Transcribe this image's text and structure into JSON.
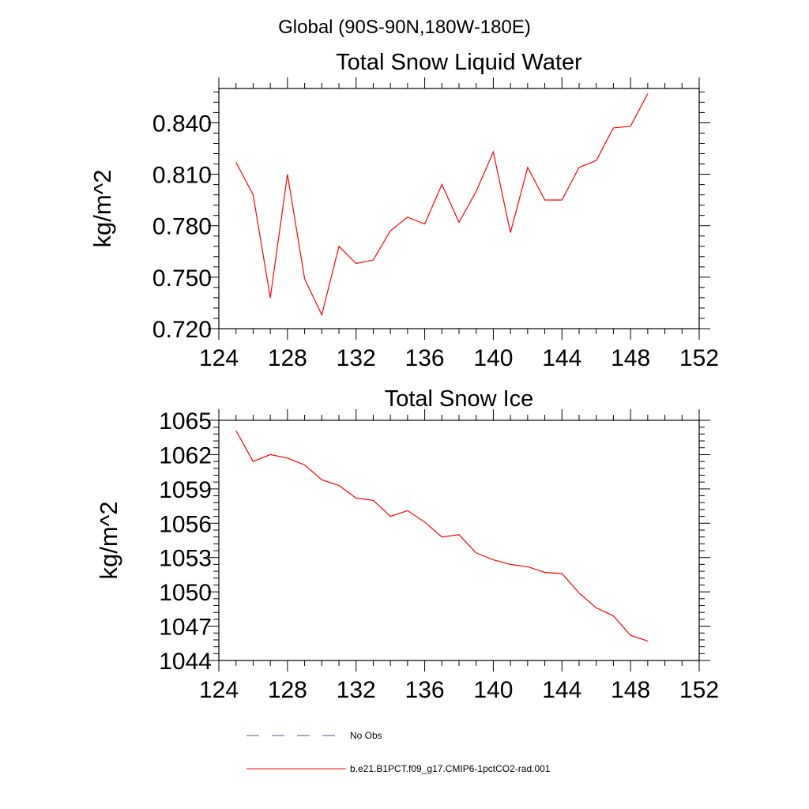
{
  "figure_title": "Global (90S-90N,180W-180E)",
  "legend": {
    "items": [
      {
        "label": "No Obs",
        "style": "dashed",
        "color": "#4a5a8a"
      },
      {
        "label": "b.e21.B1PCT.f09_g17.CMIP6-1pctCO2-rad.001",
        "style": "solid",
        "color": "#ff0000"
      }
    ]
  },
  "chart_data": [
    {
      "type": "line",
      "title": "Total Snow Liquid Water",
      "xlabel": "",
      "ylabel": "kg/m^2",
      "xlim": [
        124,
        152
      ],
      "ylim": [
        0.72,
        0.86
      ],
      "xticks": [
        "124",
        "128",
        "132",
        "136",
        "140",
        "144",
        "148",
        "152"
      ],
      "yticks": [
        "0.720",
        "0.750",
        "0.780",
        "0.810",
        "0.840"
      ],
      "series": [
        {
          "color": "#ff0000",
          "x": [
            125,
            126,
            127,
            128,
            129,
            130,
            131,
            132,
            133,
            134,
            135,
            136,
            137,
            138,
            139,
            140,
            141,
            142,
            143,
            144,
            145,
            146,
            147,
            148,
            149
          ],
          "y": [
            0.817,
            0.798,
            0.738,
            0.81,
            0.749,
            0.728,
            0.768,
            0.758,
            0.76,
            0.777,
            0.785,
            0.781,
            0.804,
            0.782,
            0.8,
            0.823,
            0.776,
            0.814,
            0.795,
            0.795,
            0.814,
            0.818,
            0.837,
            0.838,
            0.857
          ]
        }
      ]
    },
    {
      "type": "line",
      "title": "Total Snow Ice",
      "xlabel": "",
      "ylabel": "kg/m^2",
      "xlim": [
        124,
        152
      ],
      "ylim": [
        1044,
        1065
      ],
      "xticks": [
        "124",
        "128",
        "132",
        "136",
        "140",
        "144",
        "148",
        "152"
      ],
      "yticks": [
        "1044",
        "1047",
        "1050",
        "1053",
        "1056",
        "1059",
        "1062",
        "1065"
      ],
      "series": [
        {
          "color": "#ff0000",
          "x": [
            125,
            126,
            127,
            128,
            129,
            130,
            131,
            132,
            133,
            134,
            135,
            136,
            137,
            138,
            139,
            140,
            141,
            142,
            143,
            144,
            145,
            146,
            147,
            148,
            149
          ],
          "y": [
            1064.1,
            1061.4,
            1062.0,
            1061.7,
            1061.1,
            1059.8,
            1059.3,
            1058.2,
            1058.0,
            1056.6,
            1057.1,
            1056.1,
            1054.8,
            1055.0,
            1053.4,
            1052.8,
            1052.4,
            1052.2,
            1051.7,
            1051.6,
            1049.9,
            1048.6,
            1047.9,
            1046.2,
            1045.7
          ]
        }
      ]
    }
  ]
}
